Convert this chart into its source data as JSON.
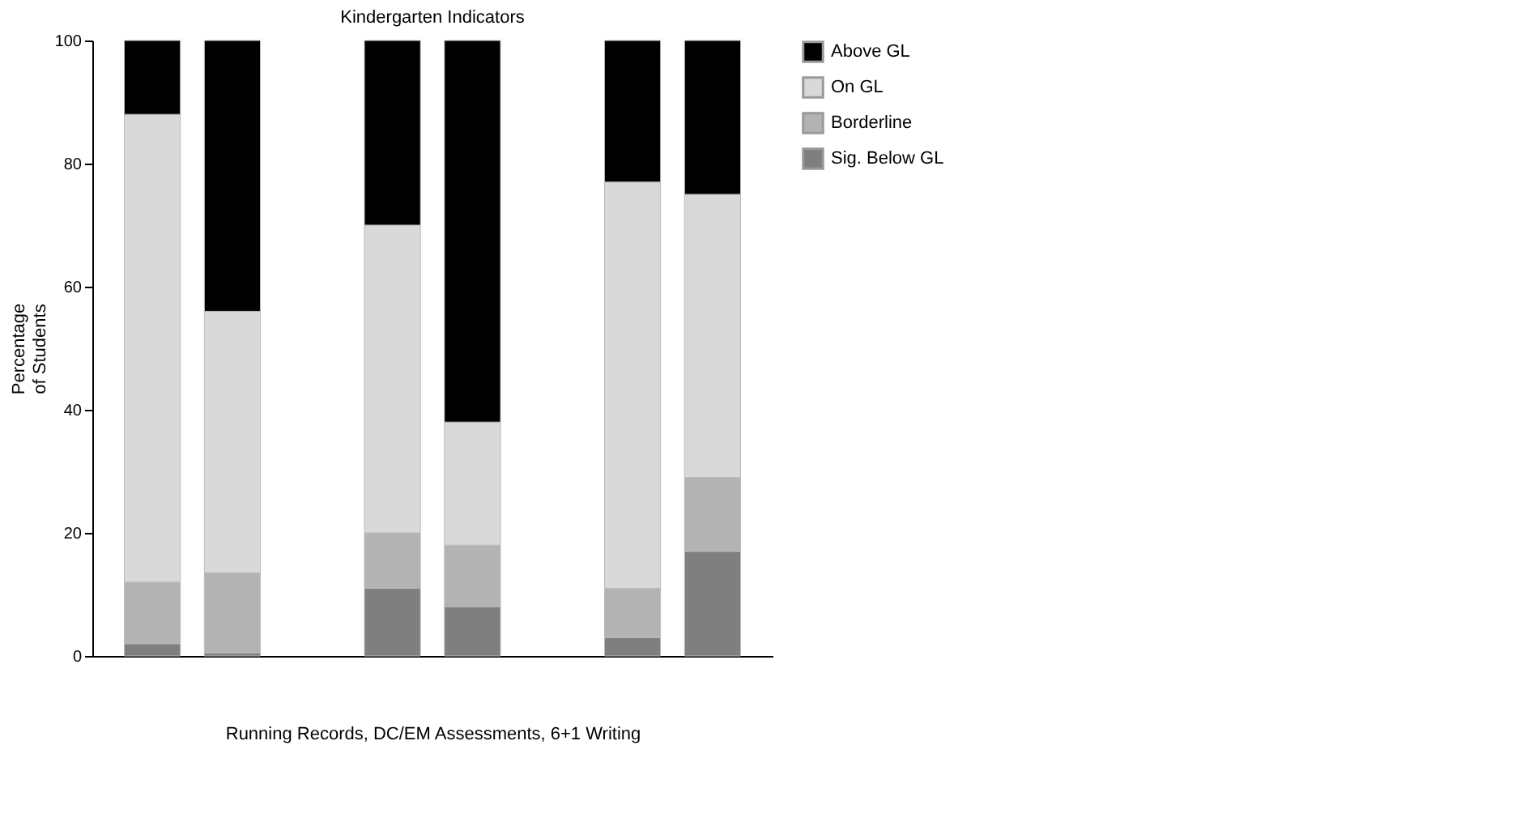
{
  "chart_data": {
    "type": "bar",
    "title": "Kindergarten Indicators",
    "xlabel": "Running Records, DC/EM Assessments, 6+1 Writing",
    "ylabel": "Percentage of Students",
    "categories": [
      null,
      null,
      null,
      null,
      null,
      null,
      null,
      null
    ],
    "stacked": true,
    "series": [
      {
        "name": "Sig. Below GL",
        "color": "#7f7f7f",
        "values": [
          2,
          0.5,
          null,
          11,
          8,
          null,
          3,
          17
        ]
      },
      {
        "name": "Borderline",
        "color": "#b3b3b3",
        "values": [
          10,
          13,
          null,
          9,
          10,
          null,
          8,
          12
        ]
      },
      {
        "name": "On GL",
        "color": "#d9d9d9",
        "values": [
          76,
          42.5,
          null,
          50,
          20,
          null,
          66,
          46
        ]
      },
      {
        "name": "Above GL",
        "color": "#000000",
        "values": [
          12,
          44,
          null,
          30,
          62,
          null,
          23,
          25
        ]
      }
    ],
    "ylim": [
      0,
      100
    ],
    "yticks": [
      0,
      20,
      40,
      60,
      80,
      100
    ],
    "grid": false,
    "legend": "right"
  }
}
